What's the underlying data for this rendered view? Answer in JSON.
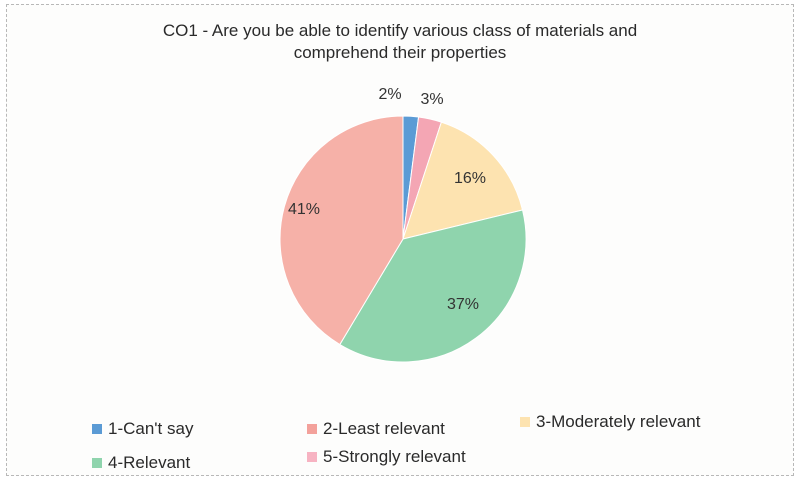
{
  "chart_data": {
    "type": "pie",
    "title_lines": [
      "CO1 - Are you be able to identify various class of materials and",
      "comprehend their properties"
    ],
    "slices": [
      {
        "label": "1-Can't say",
        "value": 2,
        "display": "2%",
        "color": "#5b9bd5"
      },
      {
        "label": "3-Moderately relevant",
        "value": 3,
        "display": "3%",
        "color": "#f4a6b4"
      },
      {
        "label": "2-Least relevant",
        "value": 16,
        "display": "16%",
        "color": "#fde3b0"
      },
      {
        "label": "4-Relevant",
        "value": 37,
        "display": "37%",
        "color": "#8fd4ad"
      },
      {
        "label": "5-Strongly relevant",
        "value": 41,
        "display": "41%",
        "color": "#f6b1a8"
      }
    ],
    "legend": [
      {
        "label": "1-Can't say",
        "color": "#5b9bd5"
      },
      {
        "label": "2-Least relevant",
        "color": "#f3a19b"
      },
      {
        "label": "3-Moderately relevant",
        "color": "#fde3b0"
      },
      {
        "label": "4-Relevant",
        "color": "#8fd4ad"
      },
      {
        "label": "5-Strongly relevant",
        "color": "#f7b3c2"
      }
    ],
    "legend_placement": "bottom"
  }
}
